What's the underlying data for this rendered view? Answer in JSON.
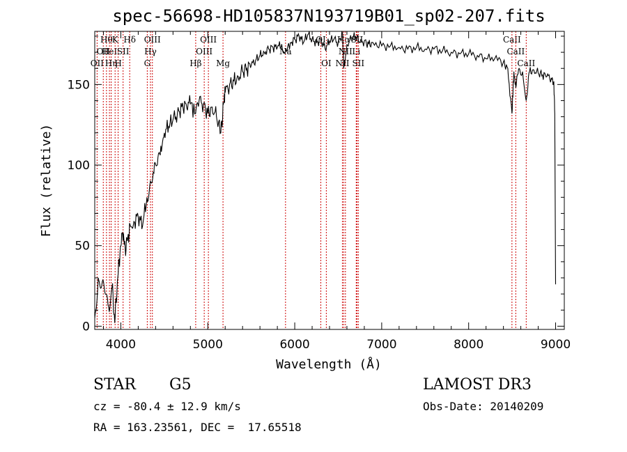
{
  "chart_data": {
    "type": "line",
    "title": "spec-56698-HD105837N193719B01_sp02-207.fits",
    "xlabel": "Wavelength (Å)",
    "ylabel": "Flux (relative)",
    "xlim": [
      3700,
      9100
    ],
    "ylim": [
      -2,
      183
    ],
    "xticks": [
      4000,
      5000,
      6000,
      7000,
      8000,
      9000
    ],
    "yticks": [
      0,
      50,
      100,
      150
    ],
    "grid": false,
    "series": [
      {
        "x": [
          3700,
          3740,
          3780,
          3820,
          3860,
          3900,
          3930,
          3960,
          3990,
          4020,
          4050,
          4080,
          4110,
          4150,
          4200,
          4250,
          4300,
          4340,
          4380,
          4420,
          4460,
          4500,
          4550,
          4600,
          4650,
          4700,
          4750,
          4800,
          4860,
          4900,
          4950,
          5000,
          5050,
          5100,
          5150,
          5180,
          5200,
          5250,
          5300,
          5350,
          5400,
          5450,
          5500,
          5550,
          5600,
          5650,
          5700,
          5750,
          5800,
          5850,
          5890,
          5950,
          6000,
          6050,
          6100,
          6150,
          6200,
          6250,
          6300,
          6350,
          6400,
          6450,
          6500,
          6550,
          6563,
          6600,
          6650,
          6700,
          6750,
          6800,
          6850,
          6900,
          7000,
          7100,
          7200,
          7300,
          7400,
          7500,
          7600,
          7700,
          7800,
          7900,
          8000,
          8100,
          8200,
          8300,
          8400,
          8450,
          8498,
          8520,
          8542,
          8580,
          8620,
          8662,
          8700,
          8750,
          8800,
          8850,
          8900,
          8950,
          8980,
          8990,
          9000
        ],
        "y": [
          5,
          30,
          25,
          20,
          12,
          25,
          2,
          28,
          45,
          58,
          48,
          55,
          62,
          65,
          68,
          62,
          80,
          90,
          95,
          100,
          112,
          120,
          124,
          128,
          132,
          136,
          138,
          138,
          132,
          140,
          138,
          132,
          136,
          130,
          120,
          138,
          145,
          150,
          152,
          155,
          158,
          160,
          162,
          165,
          168,
          170,
          172,
          173,
          173,
          175,
          170,
          176,
          178,
          180,
          176,
          181,
          178,
          176,
          178,
          172,
          177,
          178,
          176,
          182,
          160,
          175,
          178,
          180,
          176,
          177,
          175,
          176,
          174,
          174,
          173,
          172,
          173,
          172,
          172,
          171,
          170,
          169,
          169,
          168,
          166,
          166,
          164,
          160,
          132,
          158,
          148,
          160,
          158,
          140,
          158,
          159,
          157,
          156,
          155,
          154,
          152,
          132,
          26
        ]
      }
    ],
    "lines": [
      {
        "x": 3727,
        "label": "OII",
        "row": 2
      },
      {
        "x": 3798,
        "label": "OII",
        "row": 1
      },
      {
        "x": 3835,
        "label": "Hθ",
        "row": 0
      },
      {
        "x": 3869,
        "label": "HeI",
        "row": 1
      },
      {
        "x": 3889,
        "label": "Hη",
        "row": 2
      },
      {
        "x": 3934,
        "label": "K",
        "row": 0
      },
      {
        "x": 3969,
        "label": "H",
        "row": 2
      },
      {
        "x": 4026,
        "label": "SII",
        "row": 1
      },
      {
        "x": 4102,
        "label": "Hδ",
        "row": 0
      },
      {
        "x": 4304,
        "label": "G",
        "row": 2
      },
      {
        "x": 4341,
        "label": "Hγ",
        "row": 1
      },
      {
        "x": 4363,
        "label": "OIII",
        "row": 0
      },
      {
        "x": 4861,
        "label": "Hβ",
        "row": 2
      },
      {
        "x": 4959,
        "label": "OIII",
        "row": 1
      },
      {
        "x": 5007,
        "label": "OIII",
        "row": 0
      },
      {
        "x": 5175,
        "label": "Mg",
        "row": 2
      },
      {
        "x": 5894,
        "label": "Na",
        "row": 1
      },
      {
        "x": 6300,
        "label": "OI",
        "row": 0
      },
      {
        "x": 6363,
        "label": "OI",
        "row": 2
      },
      {
        "x": 6548,
        "label": "NII",
        "row": 2
      },
      {
        "x": 6563,
        "label": "Hα",
        "row": 0
      },
      {
        "x": 6583,
        "label": "NII",
        "row": 1
      },
      {
        "x": 6707,
        "label": "Li",
        "row": 1
      },
      {
        "x": 6716,
        "label": "SII",
        "row": 0
      },
      {
        "x": 6731,
        "label": "SII",
        "row": 2
      },
      {
        "x": 8498,
        "label": "CaII",
        "row": 0
      },
      {
        "x": 8542,
        "label": "CaII",
        "row": 1
      },
      {
        "x": 8662,
        "label": "CaII",
        "row": 2
      }
    ]
  },
  "info": {
    "class": "STAR",
    "subclass": "G5",
    "survey": "LAMOST DR3",
    "cz": "cz = -80.4 ± 12.9 km/s",
    "obs_date": "Obs-Date: 20140209",
    "coords": "RA = 163.23561, DEC =  17.65518"
  }
}
